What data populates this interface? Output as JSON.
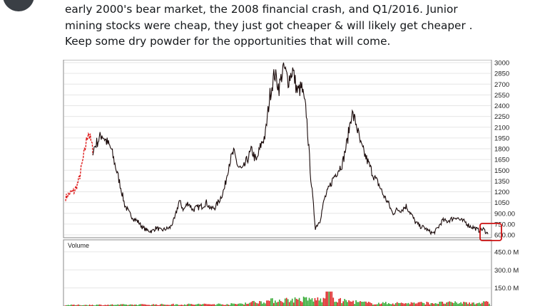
{
  "tweet": {
    "lines": [
      "early 2000's bear market, the 2008 financial crash, and Q1/2016. Junior",
      "mining stocks were cheap, they just got cheaper & will likely get cheaper .",
      "Keep some dry powder for the opportunities that will come."
    ]
  },
  "chart_data": {
    "type": "line",
    "price_axis_ticks": [
      "3000",
      "2850",
      "2700",
      "2550",
      "2400",
      "2250",
      "2100",
      "1950",
      "1800",
      "1650",
      "1500",
      "1350",
      "1200",
      "1050",
      "900.00",
      "750.00",
      "600.00"
    ],
    "price_ylim": [
      600,
      3000
    ],
    "volume_label": "Volume",
    "volume_axis_ticks": [
      "450.0 M",
      "300.0 M",
      "150.0 M"
    ],
    "colors": {
      "price": "#1a0a0a",
      "early_segment": "#dd1111",
      "up_volume": "#33aa33",
      "down_volume": "#dd2222",
      "highlight": "#cc1111"
    },
    "price_series": [
      {
        "t": 0,
        "v": 1120
      },
      {
        "t": 1,
        "v": 1180
      },
      {
        "t": 2,
        "v": 1210
      },
      {
        "t": 3,
        "v": 1380
      },
      {
        "t": 4,
        "v": 1700
      },
      {
        "t": 5,
        "v": 2050
      },
      {
        "t": 6,
        "v": 1780
      },
      {
        "t": 7,
        "v": 1900
      },
      {
        "t": 8,
        "v": 2000
      },
      {
        "t": 9,
        "v": 1900
      },
      {
        "t": 10,
        "v": 1800
      },
      {
        "t": 11,
        "v": 1550
      },
      {
        "t": 12,
        "v": 1300
      },
      {
        "t": 13,
        "v": 1020
      },
      {
        "t": 14,
        "v": 900
      },
      {
        "t": 15,
        "v": 830
      },
      {
        "t": 16,
        "v": 780
      },
      {
        "t": 17,
        "v": 700
      },
      {
        "t": 18,
        "v": 660
      },
      {
        "t": 19,
        "v": 650
      },
      {
        "t": 20,
        "v": 700
      },
      {
        "t": 21,
        "v": 660
      },
      {
        "t": 22,
        "v": 680
      },
      {
        "t": 23,
        "v": 700
      },
      {
        "t": 24,
        "v": 820
      },
      {
        "t": 25,
        "v": 1070
      },
      {
        "t": 26,
        "v": 950
      },
      {
        "t": 27,
        "v": 1050
      },
      {
        "t": 28,
        "v": 950
      },
      {
        "t": 29,
        "v": 980
      },
      {
        "t": 30,
        "v": 1000
      },
      {
        "t": 31,
        "v": 1050
      },
      {
        "t": 32,
        "v": 960
      },
      {
        "t": 33,
        "v": 990
      },
      {
        "t": 34,
        "v": 1100
      },
      {
        "t": 35,
        "v": 1250
      },
      {
        "t": 36,
        "v": 1600
      },
      {
        "t": 37,
        "v": 1750
      },
      {
        "t": 38,
        "v": 1550
      },
      {
        "t": 39,
        "v": 1500
      },
      {
        "t": 40,
        "v": 1650
      },
      {
        "t": 41,
        "v": 1780
      },
      {
        "t": 42,
        "v": 1620
      },
      {
        "t": 43,
        "v": 1850
      },
      {
        "t": 44,
        "v": 2000
      },
      {
        "t": 45,
        "v": 2550
      },
      {
        "t": 46,
        "v": 2850
      },
      {
        "t": 47,
        "v": 2650
      },
      {
        "t": 48,
        "v": 2950
      },
      {
        "t": 49,
        "v": 2750
      },
      {
        "t": 50,
        "v": 2900
      },
      {
        "t": 51,
        "v": 2600
      },
      {
        "t": 52,
        "v": 2650
      },
      {
        "t": 53,
        "v": 2300
      },
      {
        "t": 54,
        "v": 1400
      },
      {
        "t": 55,
        "v": 700
      },
      {
        "t": 56,
        "v": 800
      },
      {
        "t": 57,
        "v": 1100
      },
      {
        "t": 58,
        "v": 1250
      },
      {
        "t": 59,
        "v": 1400
      },
      {
        "t": 60,
        "v": 1500
      },
      {
        "t": 61,
        "v": 1600
      },
      {
        "t": 62,
        "v": 1900
      },
      {
        "t": 63,
        "v": 2300
      },
      {
        "t": 64,
        "v": 2150
      },
      {
        "t": 65,
        "v": 1850
      },
      {
        "t": 66,
        "v": 1700
      },
      {
        "t": 67,
        "v": 1550
      },
      {
        "t": 68,
        "v": 1400
      },
      {
        "t": 69,
        "v": 1300
      },
      {
        "t": 70,
        "v": 1150
      },
      {
        "t": 71,
        "v": 1050
      },
      {
        "t": 72,
        "v": 900
      },
      {
        "t": 73,
        "v": 950
      },
      {
        "t": 74,
        "v": 950
      },
      {
        "t": 75,
        "v": 1000
      },
      {
        "t": 76,
        "v": 900
      },
      {
        "t": 77,
        "v": 780
      },
      {
        "t": 78,
        "v": 720
      },
      {
        "t": 79,
        "v": 700
      },
      {
        "t": 80,
        "v": 650
      },
      {
        "t": 81,
        "v": 620
      },
      {
        "t": 82,
        "v": 700
      },
      {
        "t": 83,
        "v": 800
      },
      {
        "t": 84,
        "v": 790
      },
      {
        "t": 85,
        "v": 820
      },
      {
        "t": 86,
        "v": 850
      },
      {
        "t": 87,
        "v": 800
      },
      {
        "t": 88,
        "v": 780
      },
      {
        "t": 89,
        "v": 720
      },
      {
        "t": 90,
        "v": 700
      },
      {
        "t": 91,
        "v": 660
      },
      {
        "t": 92,
        "v": 680
      },
      {
        "t": 93,
        "v": 610
      }
    ]
  }
}
